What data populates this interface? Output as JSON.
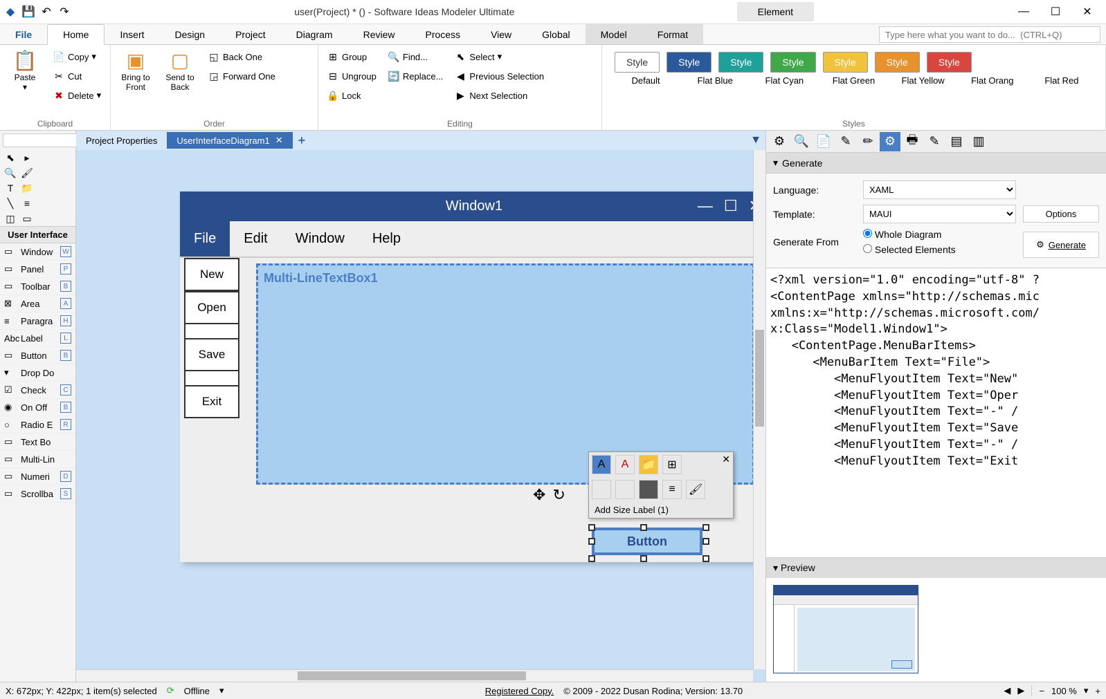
{
  "title": "user(Project) * () - Software Ideas Modeler Ultimate",
  "titlebar_tab": "Element",
  "menu": {
    "file": "File",
    "home": "Home",
    "insert": "Insert",
    "design": "Design",
    "project": "Project",
    "diagram": "Diagram",
    "review": "Review",
    "process": "Process",
    "view": "View",
    "global": "Global",
    "model": "Model",
    "format": "Format",
    "search_ph": "Type here what you want to do...  (CTRL+Q)"
  },
  "ribbon": {
    "paste": "Paste",
    "copy": "Copy",
    "cut": "Cut",
    "delete": "Delete",
    "clipboard": "Clipboard",
    "bring_front": "Bring to Front",
    "send_back": "Send to Back",
    "back_one": "Back One",
    "forward_one": "Forward One",
    "order": "Order",
    "group": "Group",
    "ungroup": "Ungroup",
    "lock": "Lock",
    "find": "Find...",
    "replace": "Replace...",
    "select": "Select",
    "prev_sel": "Previous Selection",
    "next_sel": "Next Selection",
    "editing": "Editing",
    "style": "Style",
    "styles": "Styles",
    "style_variants": [
      "Default",
      "Flat Blue",
      "Flat Cyan",
      "Flat Green",
      "Flat Yellow",
      "Flat Orang",
      "Flat Red"
    ],
    "style_colors": [
      "#ffffff",
      "#2a5a9c",
      "#1fa098",
      "#3fa848",
      "#f2c23a",
      "#e8922e",
      "#d9463d"
    ]
  },
  "tabs": {
    "props": "Project Properties",
    "diagram": "UserInterfaceDiagram1"
  },
  "toolbox": {
    "header": "User Interface",
    "items": [
      {
        "ico": "▭",
        "label": "Window",
        "key": "W"
      },
      {
        "ico": "▭",
        "label": "Panel",
        "key": "P"
      },
      {
        "ico": "▭",
        "label": "Toolbar",
        "key": "B"
      },
      {
        "ico": "⊠",
        "label": "Area",
        "key": "A"
      },
      {
        "ico": "≡",
        "label": "Paragra",
        "key": "H"
      },
      {
        "ico": "Abc",
        "label": "Label",
        "key": "L"
      },
      {
        "ico": "▭",
        "label": "Button",
        "key": "B"
      },
      {
        "ico": "▾",
        "label": "Drop Do",
        "key": ""
      },
      {
        "ico": "☑",
        "label": "Check",
        "key": "C"
      },
      {
        "ico": "◉",
        "label": "On Off",
        "key": "B"
      },
      {
        "ico": "○",
        "label": "Radio E",
        "key": "R"
      },
      {
        "ico": "▭",
        "label": "Text Bo",
        "key": ""
      },
      {
        "ico": "▭",
        "label": "Multi-Lin",
        "key": ""
      },
      {
        "ico": "▭",
        "label": "Numeri",
        "key": "D"
      },
      {
        "ico": "▭",
        "label": "Scrollba",
        "key": "S"
      }
    ]
  },
  "mockup": {
    "win_title": "Window1",
    "menu": [
      "File",
      "Edit",
      "Window",
      "Help"
    ],
    "sidebar": [
      "New",
      "Open",
      "Save",
      "Exit"
    ],
    "textbox": "Multi-LineTextBox1",
    "button": "Button",
    "float_label": "Add Size Label (1)"
  },
  "generate": {
    "hdr": "Generate",
    "language_lbl": "Language:",
    "language": "XAML",
    "template_lbl": "Template:",
    "template": "MAUI",
    "options": "Options",
    "from_lbl": "Generate From",
    "whole": "Whole Diagram",
    "selected": "Selected Elements",
    "btn": "Generate",
    "code": "<?xml version=\"1.0\" encoding=\"utf-8\" ?\n<ContentPage xmlns=\"http://schemas.mic\nxmlns:x=\"http://schemas.microsoft.com/\nx:Class=\"Model1.Window1\">\n   <ContentPage.MenuBarItems>\n      <MenuBarItem Text=\"File\">\n         <MenuFlyoutItem Text=\"New\"\n         <MenuFlyoutItem Text=\"Oper\n         <MenuFlyoutItem Text=\"-\" /\n         <MenuFlyoutItem Text=\"Save\n         <MenuFlyoutItem Text=\"-\" /\n         <MenuFlyoutItem Text=\"Exit",
    "preview": "Preview"
  },
  "status": {
    "coords": "X: 672px; Y: 422px; 1 item(s) selected",
    "offline": "Offline",
    "reg": "Registered Copy.",
    "copyright": "© 2009 - 2022 Dusan Rodina; Version: 13.70",
    "zoom": "100 %"
  }
}
